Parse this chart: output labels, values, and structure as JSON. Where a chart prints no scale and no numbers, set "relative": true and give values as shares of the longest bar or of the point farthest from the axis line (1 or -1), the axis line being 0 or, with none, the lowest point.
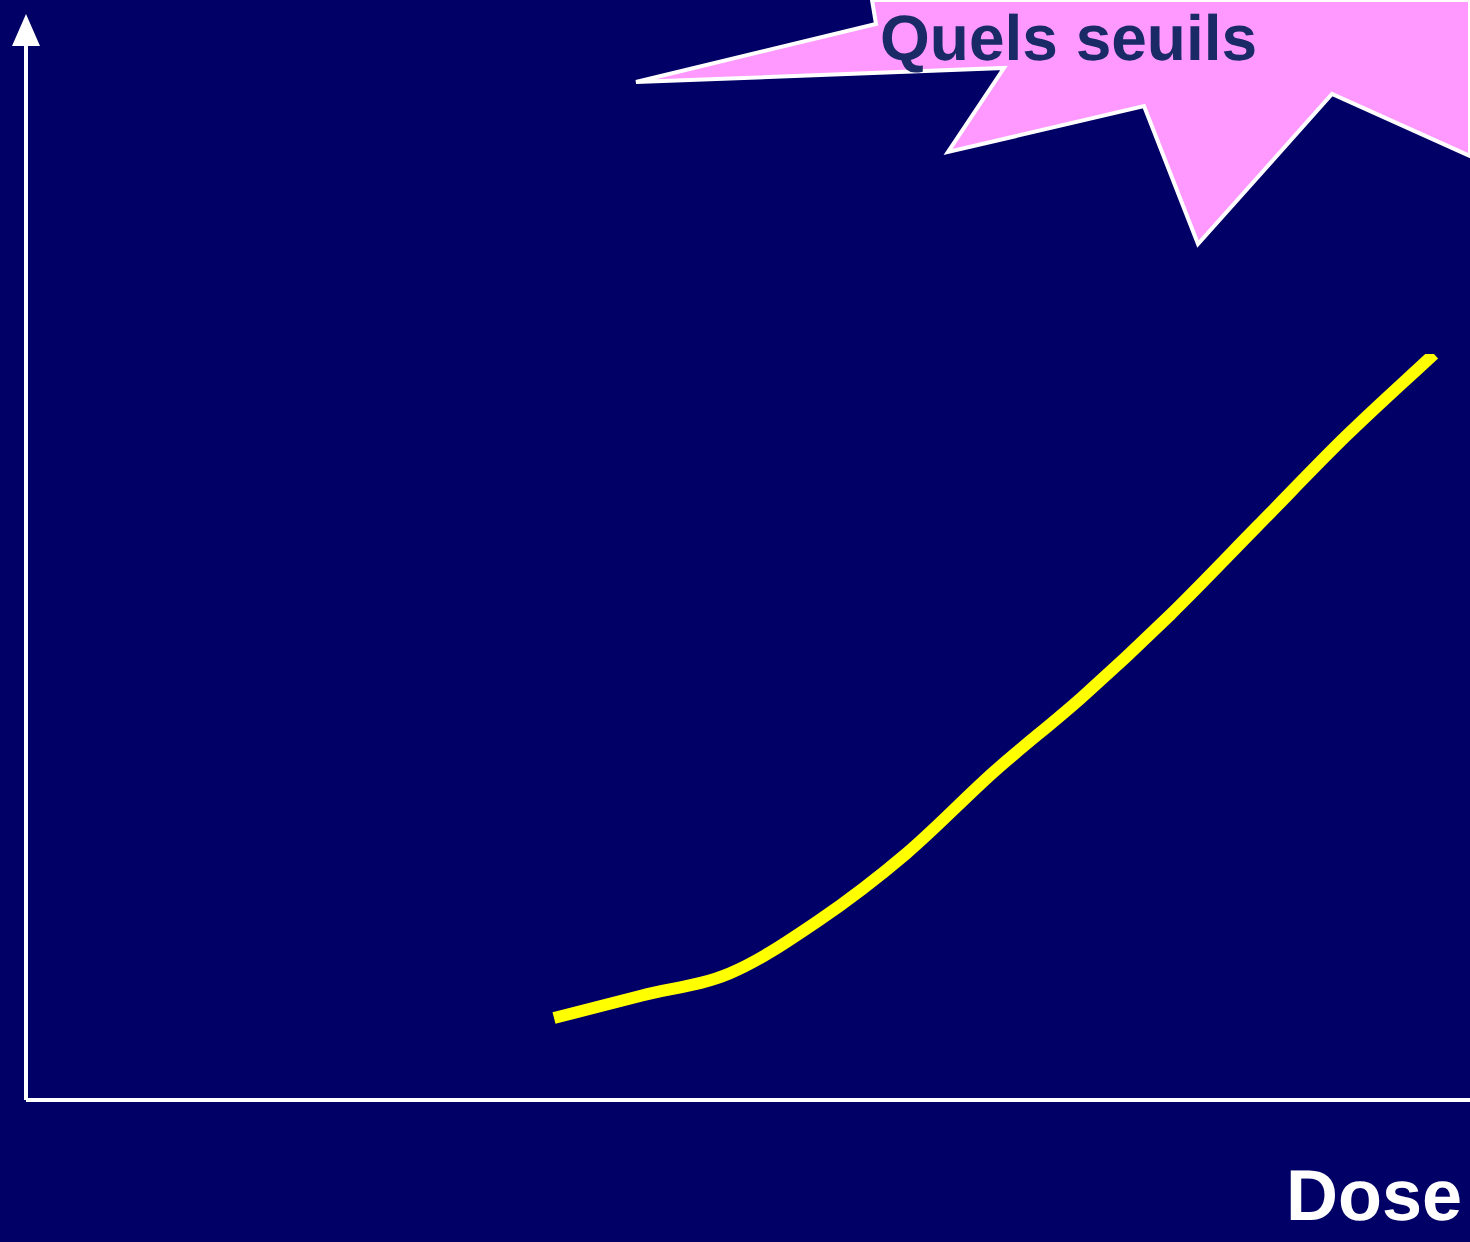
{
  "chart_data": {
    "type": "line",
    "title": "Quels seuils",
    "xlabel": "Dose",
    "relative": true,
    "categories": [
      null,
      null,
      null,
      null,
      null,
      null,
      null,
      null,
      null,
      null,
      null,
      null,
      null,
      null,
      null,
      null,
      null
    ],
    "series": [
      {
        "color": "#ffff00",
        "values": [
          null,
          null,
          null,
          null,
          null,
          null,
          0.11,
          0.14,
          0.17,
          0.24,
          0.33,
          0.44,
          0.54,
          0.65,
          0.77,
          0.89,
          1
        ]
      }
    ],
    "legend": false,
    "grid": false,
    "marker": "none",
    "line_style": "solid"
  }
}
